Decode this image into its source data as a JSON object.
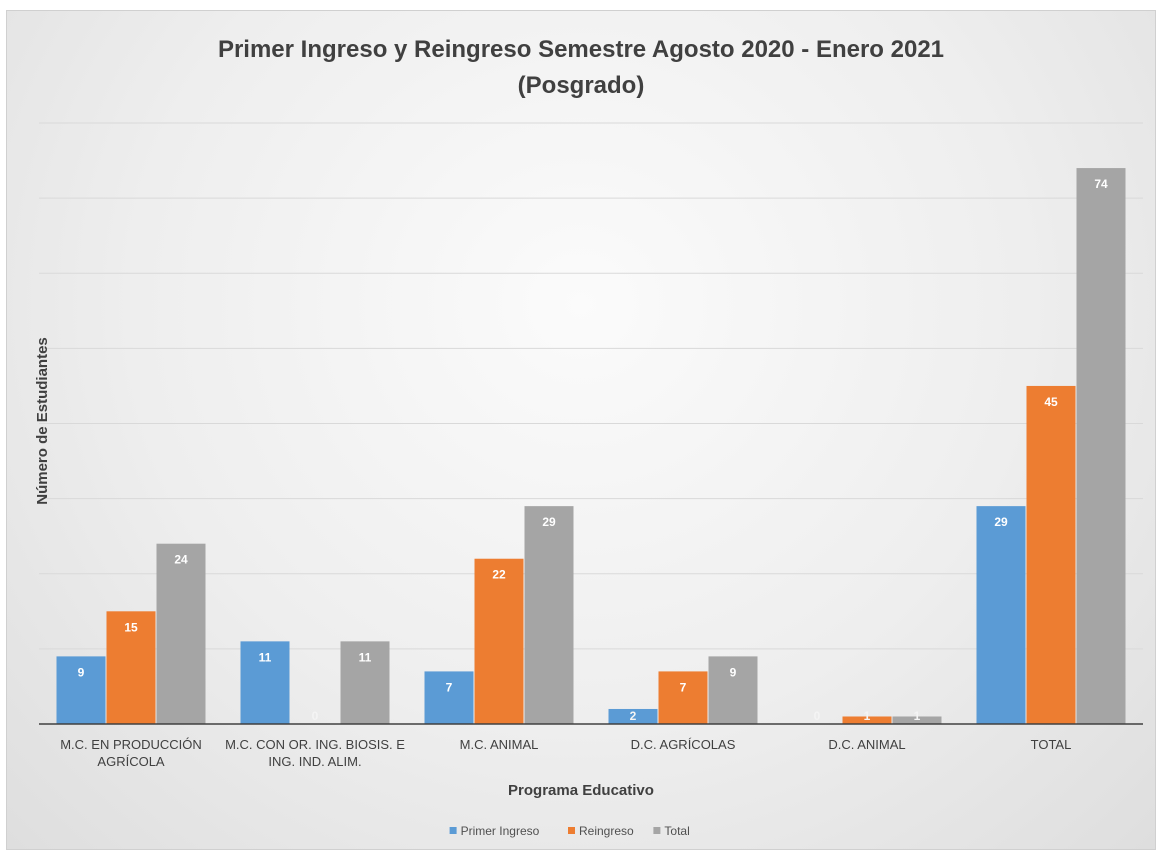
{
  "chart_data": {
    "type": "bar",
    "title": "Primer Ingreso y Reingreso Semestre Agosto 2020 - Enero 2021",
    "subtitle": "(Posgrado)",
    "xlabel": "Programa Educativo",
    "ylabel": "Número de Estudiantes",
    "categories": [
      [
        "M.C. EN PRODUCCIÓN",
        "AGRÍCOLA"
      ],
      [
        "M.C. CON OR. ING. BIOSIS. E",
        "ING. IND. ALIM."
      ],
      [
        "M.C. ANIMAL"
      ],
      [
        "D.C. AGRÍCOLAS"
      ],
      [
        "D.C. ANIMAL"
      ],
      [
        "TOTAL"
      ]
    ],
    "series": [
      {
        "name": "Primer Ingreso",
        "color": "#5b9bd5",
        "values": [
          9,
          11,
          7,
          2,
          0,
          29
        ]
      },
      {
        "name": "Reingreso",
        "color": "#ed7d31",
        "values": [
          15,
          0,
          22,
          7,
          1,
          45
        ]
      },
      {
        "name": "Total",
        "color": "#a5a5a5",
        "values": [
          24,
          11,
          29,
          9,
          1,
          74
        ]
      }
    ],
    "ylim": [
      0,
      80
    ],
    "grid": true,
    "legend": "bottom-center"
  }
}
